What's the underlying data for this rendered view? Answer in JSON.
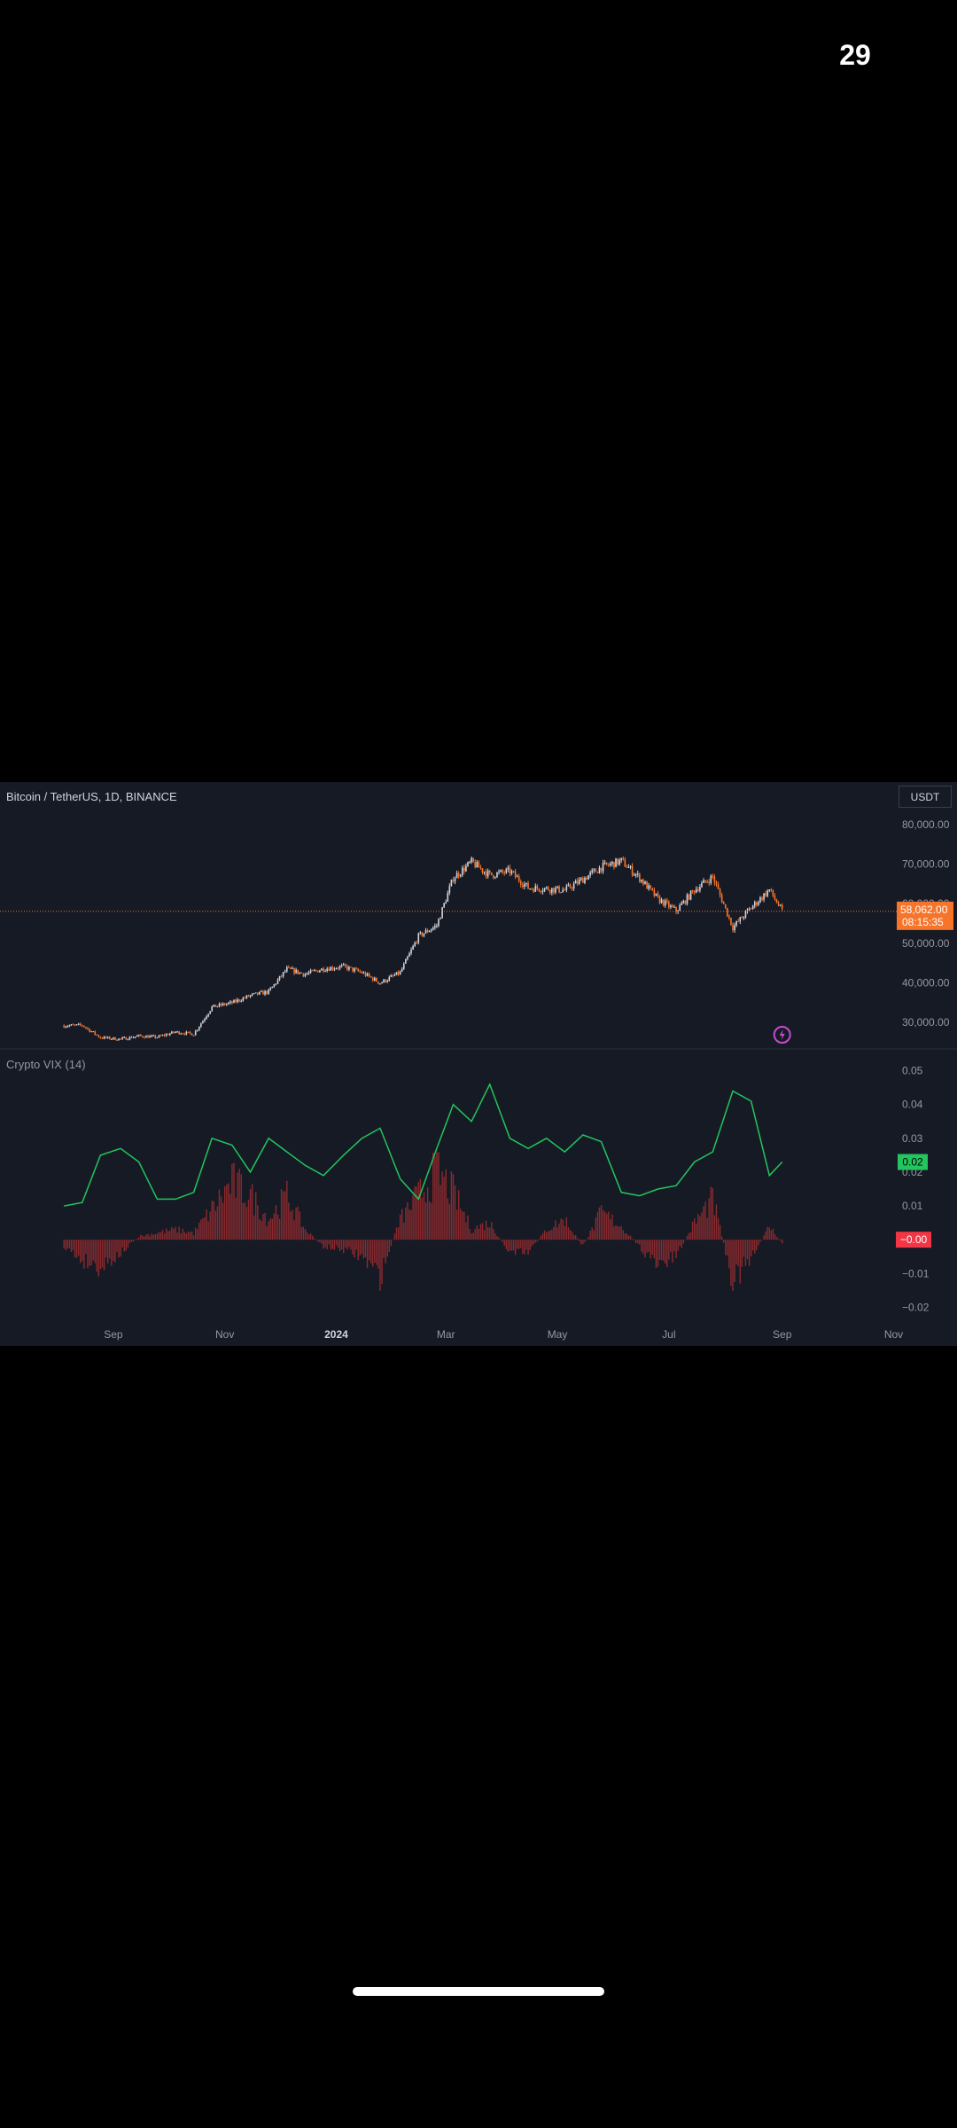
{
  "status_bar": {
    "time": "29"
  },
  "chart_header": {
    "symbol": "Bitcoin / TetherUS, 1D, BINANCE",
    "currency": "USDT"
  },
  "indicator_header": {
    "title": "Crypto VIX (14)"
  },
  "colors": {
    "background": "#161a25",
    "candle_up": "#d1d4dc",
    "candle_down": "#f7752b",
    "price_line": "#f7752b",
    "vix_line": "#22c55e",
    "histogram": "#8b2a2e",
    "label_green": "#22c55e",
    "label_red": "#f23645"
  },
  "chart_data": [
    {
      "type": "candlestick",
      "title": "Bitcoin / TetherUS, 1D, BINANCE",
      "y_ticks": [
        "80,000.00",
        "70,000.00",
        "60,000.00",
        "50,000.00",
        "40,000.00",
        "30,000.00"
      ],
      "ylim": [
        24000,
        84000
      ],
      "x_ticks": [
        "Sep",
        "Nov",
        "2024",
        "Mar",
        "May",
        "Jul",
        "Sep",
        "Nov"
      ],
      "last_price_label": "58,062.00",
      "countdown_label": "08:15:35",
      "series": [
        {
          "name": "BTCUSDT",
          "x": [
            "2023-08-05",
            "2023-08-15",
            "2023-08-25",
            "2023-09-05",
            "2023-09-15",
            "2023-09-25",
            "2023-10-05",
            "2023-10-15",
            "2023-10-25",
            "2023-11-05",
            "2023-11-15",
            "2023-11-25",
            "2023-12-05",
            "2023-12-15",
            "2023-12-25",
            "2024-01-05",
            "2024-01-15",
            "2024-01-25",
            "2024-02-05",
            "2024-02-15",
            "2024-02-25",
            "2024-03-05",
            "2024-03-15",
            "2024-03-25",
            "2024-04-05",
            "2024-04-15",
            "2024-04-25",
            "2024-05-05",
            "2024-05-15",
            "2024-05-25",
            "2024-06-05",
            "2024-06-15",
            "2024-06-25",
            "2024-07-05",
            "2024-07-15",
            "2024-07-25",
            "2024-08-05",
            "2024-08-15",
            "2024-08-25",
            "2024-09-01"
          ],
          "y": [
            29200,
            29300,
            26200,
            25800,
            26600,
            26300,
            27600,
            27100,
            33900,
            35000,
            36800,
            37800,
            43500,
            42200,
            43600,
            44100,
            42600,
            40000,
            42600,
            51800,
            54500,
            66500,
            70500,
            67200,
            68200,
            64000,
            63800,
            63400,
            66200,
            69200,
            70800,
            66500,
            61200,
            58200,
            63500,
            66800,
            54000,
            59000,
            63500,
            58062
          ]
        }
      ]
    },
    {
      "type": "line+histogram",
      "title": "Crypto VIX (14)",
      "y_ticks": [
        "0.05",
        "0.04",
        "0.03",
        "0.02",
        "0.01",
        "0.00",
        "−0.01",
        "−0.02"
      ],
      "ylim": [
        -0.022,
        0.052
      ],
      "last_value_label": "0.02",
      "last_histogram_label": "−0.00",
      "series": [
        {
          "name": "VIX",
          "x": [
            "2023-08-05",
            "2023-08-15",
            "2023-08-25",
            "2023-09-05",
            "2023-09-15",
            "2023-09-25",
            "2023-10-05",
            "2023-10-15",
            "2023-10-25",
            "2023-11-05",
            "2023-11-15",
            "2023-11-25",
            "2023-12-05",
            "2023-12-15",
            "2023-12-25",
            "2024-01-05",
            "2024-01-15",
            "2024-01-25",
            "2024-02-05",
            "2024-02-15",
            "2024-02-25",
            "2024-03-05",
            "2024-03-15",
            "2024-03-25",
            "2024-04-05",
            "2024-04-15",
            "2024-04-25",
            "2024-05-05",
            "2024-05-15",
            "2024-05-25",
            "2024-06-05",
            "2024-06-15",
            "2024-06-25",
            "2024-07-05",
            "2024-07-15",
            "2024-07-25",
            "2024-08-05",
            "2024-08-15",
            "2024-08-25",
            "2024-09-01"
          ],
          "y": [
            0.01,
            0.011,
            0.025,
            0.027,
            0.023,
            0.012,
            0.012,
            0.014,
            0.03,
            0.028,
            0.02,
            0.03,
            0.026,
            0.022,
            0.019,
            0.025,
            0.03,
            0.033,
            0.018,
            0.012,
            0.027,
            0.04,
            0.035,
            0.046,
            0.03,
            0.027,
            0.03,
            0.026,
            0.031,
            0.029,
            0.014,
            0.013,
            0.015,
            0.016,
            0.023,
            0.026,
            0.044,
            0.041,
            0.019,
            0.023
          ]
        },
        {
          "name": "Histogram",
          "x": [
            "2023-08-05",
            "2023-08-15",
            "2023-08-25",
            "2023-09-05",
            "2023-09-15",
            "2023-09-25",
            "2023-10-05",
            "2023-10-15",
            "2023-10-25",
            "2023-11-05",
            "2023-11-15",
            "2023-11-25",
            "2023-12-05",
            "2023-12-15",
            "2023-12-25",
            "2024-01-05",
            "2024-01-15",
            "2024-01-25",
            "2024-02-05",
            "2024-02-15",
            "2024-02-25",
            "2024-03-05",
            "2024-03-15",
            "2024-03-25",
            "2024-04-05",
            "2024-04-15",
            "2024-04-25",
            "2024-05-05",
            "2024-05-15",
            "2024-05-25",
            "2024-06-05",
            "2024-06-15",
            "2024-06-25",
            "2024-07-05",
            "2024-07-15",
            "2024-07-25",
            "2024-08-05",
            "2024-08-15",
            "2024-08-25",
            "2024-09-01"
          ],
          "y": [
            -0.002,
            -0.006,
            -0.008,
            -0.004,
            0.001,
            0.002,
            0.003,
            0.002,
            0.009,
            0.017,
            0.013,
            0.006,
            0.013,
            0.003,
            -0.002,
            -0.003,
            -0.005,
            -0.011,
            0.006,
            0.013,
            0.02,
            0.014,
            0.003,
            0.005,
            -0.004,
            -0.004,
            0.003,
            0.006,
            -0.002,
            0.008,
            0.004,
            -0.002,
            -0.008,
            -0.005,
            0.005,
            0.012,
            -0.012,
            -0.006,
            0.004,
            -0.001
          ]
        }
      ]
    }
  ]
}
